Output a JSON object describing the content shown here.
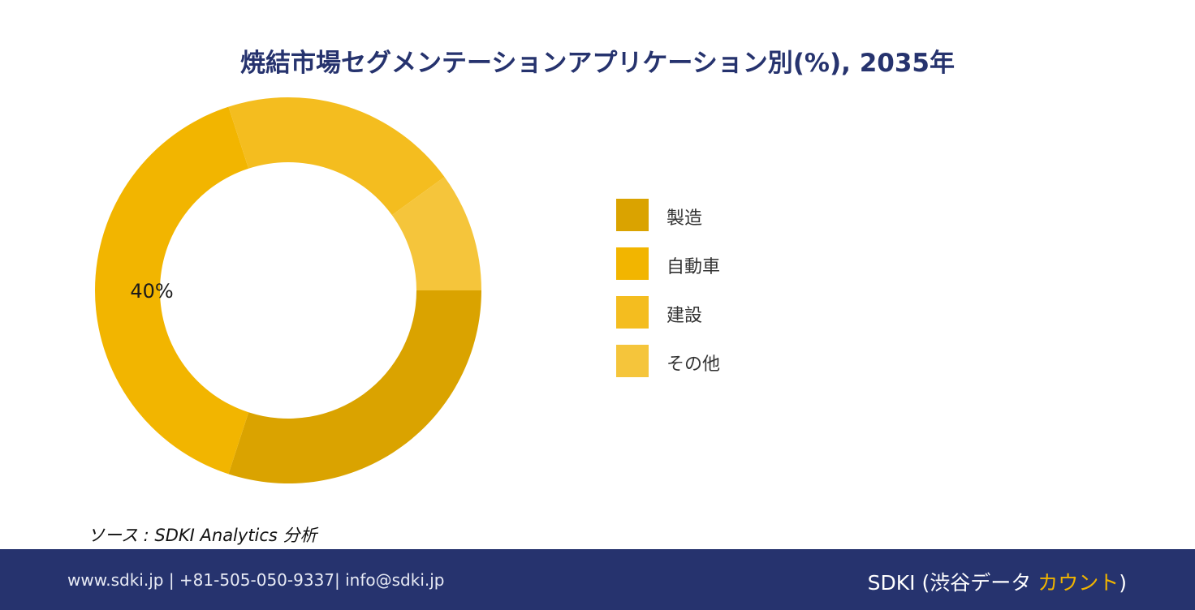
{
  "title": "焼結市場セグメンテーションアプリケーション別(%), 2035年",
  "source_text": "ソース : SDKI Analytics 分析",
  "footer": {
    "contact": "www.sdki.jp | +81-505-050-9337| info@sdki.jp",
    "brand_prefix": "SDKI (渋谷データ ",
    "brand_accent": "カウント",
    "brand_suffix": ")"
  },
  "chart_data": {
    "type": "pie",
    "title": "焼結市場セグメンテーションアプリケーション別(%), 2035年",
    "categories": [
      "製造",
      "自動車",
      "建設",
      "その他"
    ],
    "values": [
      30,
      40,
      20,
      10
    ],
    "colors": [
      "#DAA300",
      "#F2B500",
      "#F4BD1F",
      "#F5C53B"
    ],
    "data_labels": [
      "",
      "40%",
      "",
      ""
    ],
    "legend_position": "right"
  }
}
